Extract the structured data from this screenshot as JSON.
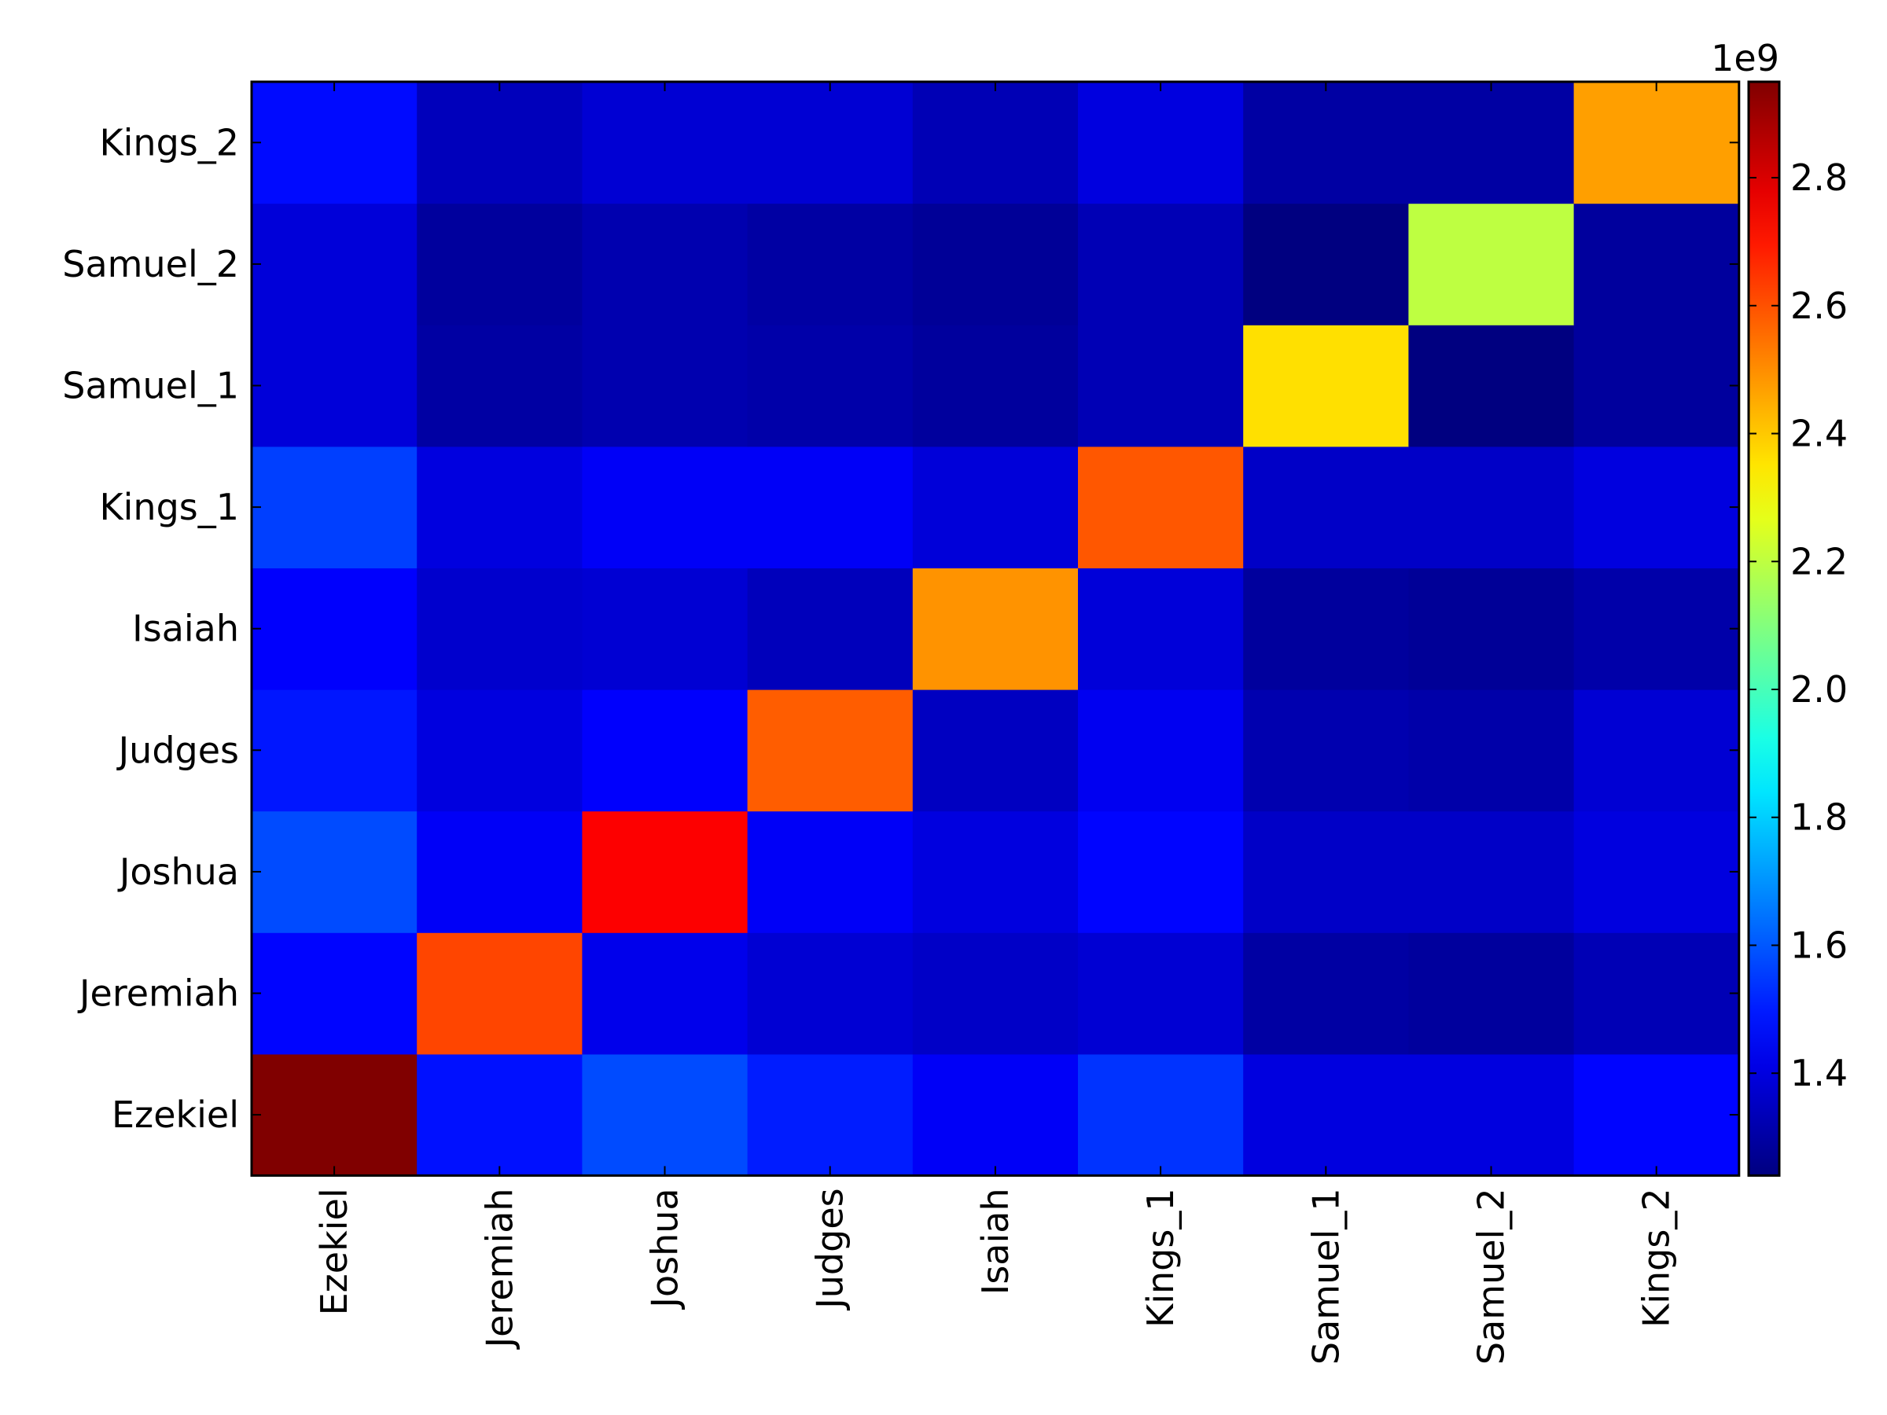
{
  "chart_data": {
    "type": "heatmap",
    "title": "",
    "xlabel": "",
    "ylabel": "",
    "x_categories": [
      "Ezekiel",
      "Jeremiah",
      "Joshua",
      "Judges",
      "Isaiah",
      "Kings_1",
      "Samuel_1",
      "Samuel_2",
      "Kings_2"
    ],
    "y_categories": [
      "Ezekiel",
      "Jeremiah",
      "Joshua",
      "Judges",
      "Isaiah",
      "Kings_1",
      "Samuel_1",
      "Samuel_2",
      "Kings_2"
    ],
    "matrix": [
      [
        2.95,
        1.48,
        1.58,
        1.5,
        1.44,
        1.54,
        1.4,
        1.4,
        1.46
      ],
      [
        1.46,
        2.62,
        1.42,
        1.38,
        1.36,
        1.38,
        1.3,
        1.29,
        1.33
      ],
      [
        1.58,
        1.44,
        2.74,
        1.44,
        1.4,
        1.46,
        1.36,
        1.36,
        1.4
      ],
      [
        1.49,
        1.4,
        1.45,
        2.58,
        1.35,
        1.43,
        1.32,
        1.31,
        1.38
      ],
      [
        1.45,
        1.37,
        1.38,
        1.34,
        2.49,
        1.39,
        1.29,
        1.28,
        1.31
      ],
      [
        1.56,
        1.4,
        1.44,
        1.44,
        1.39,
        2.59,
        1.36,
        1.36,
        1.4
      ],
      [
        1.39,
        1.3,
        1.32,
        1.31,
        1.29,
        1.33,
        2.36,
        1.24,
        1.29
      ],
      [
        1.39,
        1.29,
        1.32,
        1.3,
        1.28,
        1.33,
        1.24,
        2.2,
        1.29
      ],
      [
        1.47,
        1.34,
        1.38,
        1.38,
        1.33,
        1.4,
        1.3,
        1.3,
        2.47
      ]
    ],
    "colorbar": {
      "min": 1.24,
      "max": 2.95,
      "ticks": [
        "1.4",
        "1.6",
        "1.8",
        "2.0",
        "2.2",
        "2.4",
        "2.6",
        "2.8"
      ],
      "tick_values": [
        1.4,
        1.6,
        1.8,
        2.0,
        2.2,
        2.4,
        2.6,
        2.8
      ],
      "offset_label": "1e9"
    },
    "colormap": "jet",
    "grid": false
  }
}
